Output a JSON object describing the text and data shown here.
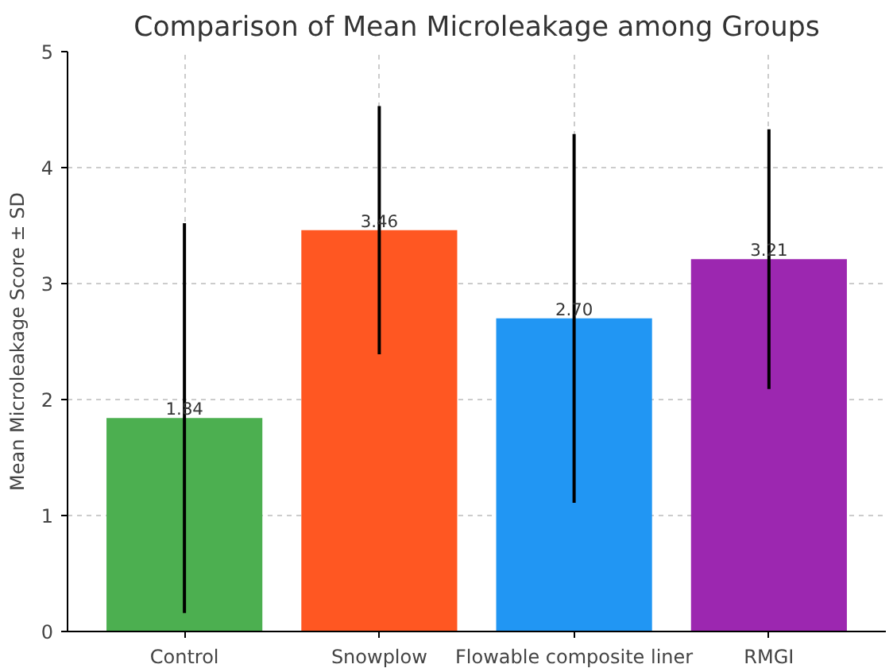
{
  "chart_data": {
    "type": "bar",
    "title": "Comparison of Mean Microleakage among Groups",
    "ylabel": "Mean Microleakage Score ± SD",
    "categories": [
      "Control",
      "Snowplow",
      "Flowable composite liner",
      "RMGI"
    ],
    "values": [
      1.84,
      3.46,
      2.7,
      3.21
    ],
    "colors": [
      "#4caf50",
      "#ff5722",
      "#2196f3",
      "#9c27b0"
    ],
    "errors": [
      1.68,
      1.07,
      1.59,
      1.12
    ],
    "value_labels": [
      "1.84",
      "3.46",
      "2.70",
      "3.21"
    ],
    "ylim": [
      0,
      5
    ],
    "yticks": [
      0,
      1,
      2,
      3,
      4,
      5
    ],
    "grid": true
  }
}
